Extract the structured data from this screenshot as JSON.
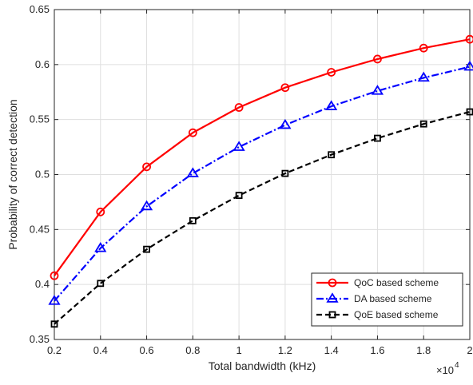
{
  "chart_data": {
    "type": "line",
    "title": "",
    "xlabel": "Total bandwidth (kHz)",
    "ylabel": "Probability of correct detection",
    "x_multiplier_label": "×10",
    "x_multiplier_exponent": "4",
    "x": [
      0.2,
      0.4,
      0.6,
      0.8,
      1.0,
      1.2,
      1.4,
      1.6,
      1.8,
      2.0
    ],
    "x_tick_labels": [
      "0.2",
      "0.4",
      "0.6",
      "0.8",
      "1",
      "1.2",
      "1.4",
      "1.6",
      "1.8",
      "2"
    ],
    "y_tick_labels": [
      "0.35",
      "0.4",
      "0.45",
      "0.5",
      "0.55",
      "0.6",
      "0.65"
    ],
    "xlim": [
      0.2,
      2.0
    ],
    "ylim": [
      0.35,
      0.65
    ],
    "grid": true,
    "legend_position": "bottom-right",
    "series": [
      {
        "name": "QoC based scheme",
        "color": "#ff0000",
        "line_style": "solid",
        "marker": "circle",
        "values": [
          0.408,
          0.466,
          0.507,
          0.538,
          0.561,
          0.579,
          0.593,
          0.605,
          0.615,
          0.623
        ]
      },
      {
        "name": "DA based scheme",
        "color": "#0000ff",
        "line_style": "dash-dot",
        "marker": "triangle",
        "values": [
          0.385,
          0.433,
          0.471,
          0.501,
          0.525,
          0.545,
          0.562,
          0.576,
          0.588,
          0.598
        ]
      },
      {
        "name": "QoE based scheme",
        "color": "#000000",
        "line_style": "dashed",
        "marker": "square",
        "values": [
          0.364,
          0.401,
          0.432,
          0.458,
          0.481,
          0.501,
          0.518,
          0.533,
          0.546,
          0.557
        ]
      }
    ]
  }
}
